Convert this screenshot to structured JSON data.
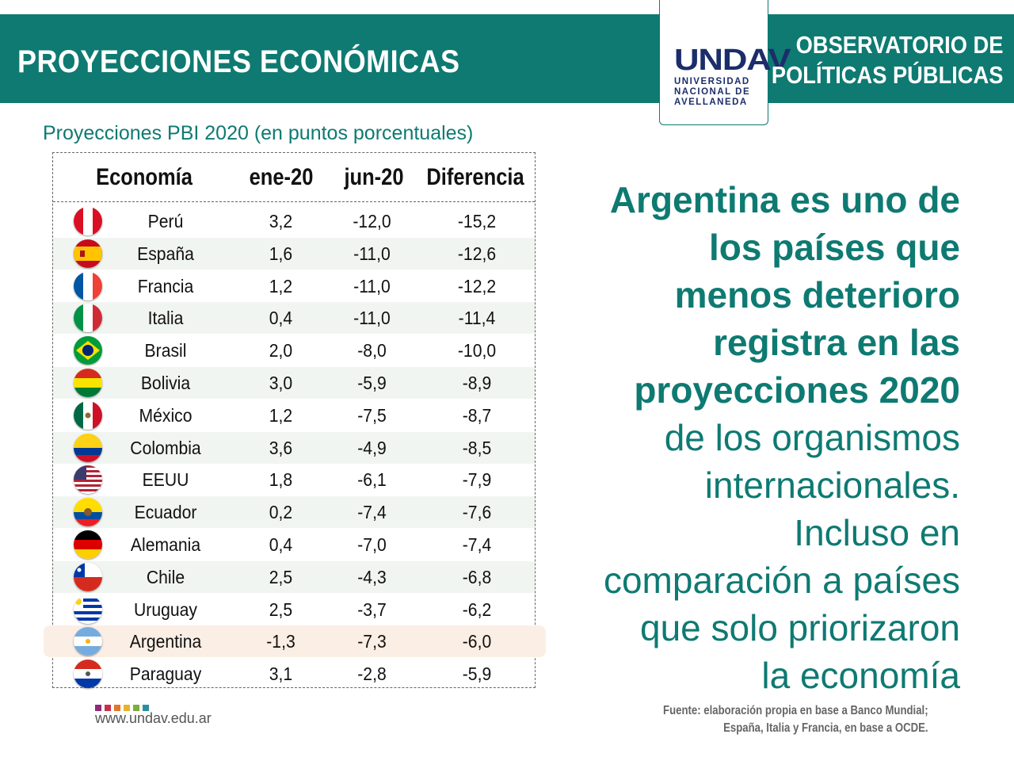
{
  "header": {
    "title": "PROYECCIONES ECONÓMICAS",
    "observatory_line1": "OBSERVATORIO DE",
    "observatory_line2": "POLÍTICAS PÚBLICAS",
    "logo_text": "UNDAV",
    "logo_sub1": "UNIVERSIDAD",
    "logo_sub2": "NACIONAL DE",
    "logo_sub3": "AVELLANEDA",
    "band_color": "#0e7a72"
  },
  "subtitle": "Proyecciones PBI 2020 (en puntos porcentuales)",
  "table": {
    "headers": [
      "Economía",
      "ene-20",
      "jun-20",
      "Diferencia"
    ],
    "rows": [
      {
        "flag": "peru-flag-icon",
        "name": "Perú",
        "ene": "3,2",
        "jun": "-12,0",
        "dif": "-15,2"
      },
      {
        "flag": "spain-flag-icon",
        "name": "España",
        "ene": "1,6",
        "jun": "-11,0",
        "dif": "-12,6"
      },
      {
        "flag": "france-flag-icon",
        "name": "Francia",
        "ene": "1,2",
        "jun": "-11,0",
        "dif": "-12,2"
      },
      {
        "flag": "italy-flag-icon",
        "name": "Italia",
        "ene": "0,4",
        "jun": "-11,0",
        "dif": "-11,4"
      },
      {
        "flag": "brazil-flag-icon",
        "name": "Brasil",
        "ene": "2,0",
        "jun": "-8,0",
        "dif": "-10,0"
      },
      {
        "flag": "bolivia-flag-icon",
        "name": "Bolivia",
        "ene": "3,0",
        "jun": "-5,9",
        "dif": "-8,9"
      },
      {
        "flag": "mexico-flag-icon",
        "name": "México",
        "ene": "1,2",
        "jun": "-7,5",
        "dif": "-8,7"
      },
      {
        "flag": "colombia-flag-icon",
        "name": "Colombia",
        "ene": "3,6",
        "jun": "-4,9",
        "dif": "-8,5"
      },
      {
        "flag": "usa-flag-icon",
        "name": "EEUU",
        "ene": "1,8",
        "jun": "-6,1",
        "dif": "-7,9"
      },
      {
        "flag": "ecuador-flag-icon",
        "name": "Ecuador",
        "ene": "0,2",
        "jun": "-7,4",
        "dif": "-7,6"
      },
      {
        "flag": "germany-flag-icon",
        "name": "Alemania",
        "ene": "0,4",
        "jun": "-7,0",
        "dif": "-7,4"
      },
      {
        "flag": "chile-flag-icon",
        "name": "Chile",
        "ene": "2,5",
        "jun": "-4,3",
        "dif": "-6,8"
      },
      {
        "flag": "uruguay-flag-icon",
        "name": "Uruguay",
        "ene": "2,5",
        "jun": "-3,7",
        "dif": "-6,2"
      },
      {
        "flag": "argentina-flag-icon",
        "name": "Argentina",
        "ene": "-1,3",
        "jun": "-7,3",
        "dif": "-6,0",
        "highlight": true
      },
      {
        "flag": "paraguay-flag-icon",
        "name": "Paraguay",
        "ene": "3,1",
        "jun": "-2,8",
        "dif": "-5,9"
      }
    ]
  },
  "headline": {
    "bold_lines": [
      "Argentina es uno de",
      "los países que",
      "menos deterioro",
      "registra en las",
      "proyecciones 2020"
    ],
    "normal_lines": [
      "de los organismos",
      "internacionales.",
      "Incluso en",
      "comparación a países",
      "que solo  priorizaron",
      "la economía"
    ]
  },
  "footer": {
    "website": "www.undav.edu.ar",
    "source_line1": "Fuente: elaboración propia en base a Banco Mundial;",
    "source_line2": "España, Italia y Francia, en base a OCDE.",
    "dot_colors": [
      "#8e2a7c",
      "#c8304a",
      "#e5742a",
      "#e7b32a",
      "#7cae3c",
      "#2b8fa3"
    ]
  }
}
